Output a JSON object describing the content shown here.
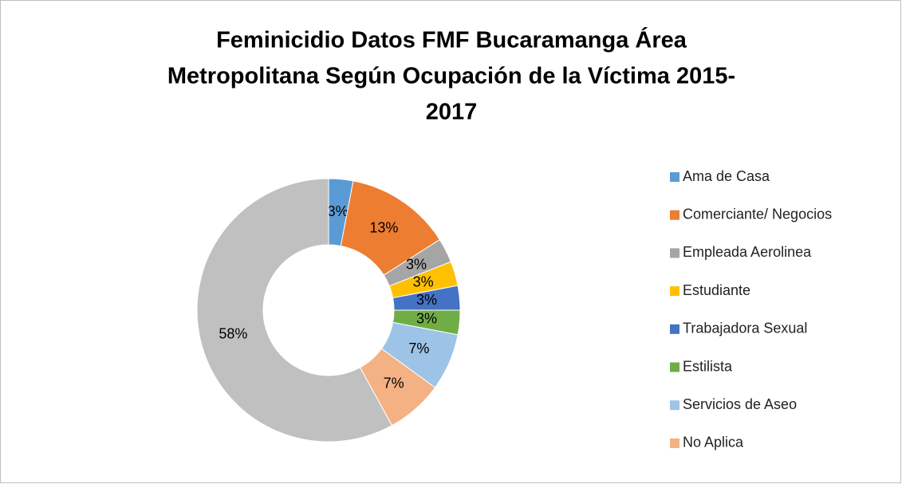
{
  "chart_data": {
    "type": "donut",
    "title": [
      "Feminicidio Datos FMF Bucaramanga Área",
      "Metropolitana  Según Ocupación de la Víctima 2015-",
      "2017"
    ],
    "categories": [
      "Ama de Casa",
      "Comerciante/ Negocios",
      "Empleada Aerolinea",
      "Estudiante",
      "Trabajadora Sexual",
      "Estilista",
      "Servicios de Aseo",
      "No Aplica",
      null
    ],
    "values": [
      3,
      13,
      3,
      3,
      3,
      3,
      7,
      7,
      58
    ],
    "value_labels": [
      "3%",
      "13%",
      "3%",
      "3%",
      "3%",
      "3%",
      "7%",
      "7%",
      "58%"
    ],
    "colors": [
      "#5b9bd5",
      "#ed7d31",
      "#a5a5a5",
      "#ffc000",
      "#4472c4",
      "#70ad47",
      "#9dc3e6",
      "#f4b183",
      "#c0c0c0"
    ],
    "legend": "right"
  }
}
